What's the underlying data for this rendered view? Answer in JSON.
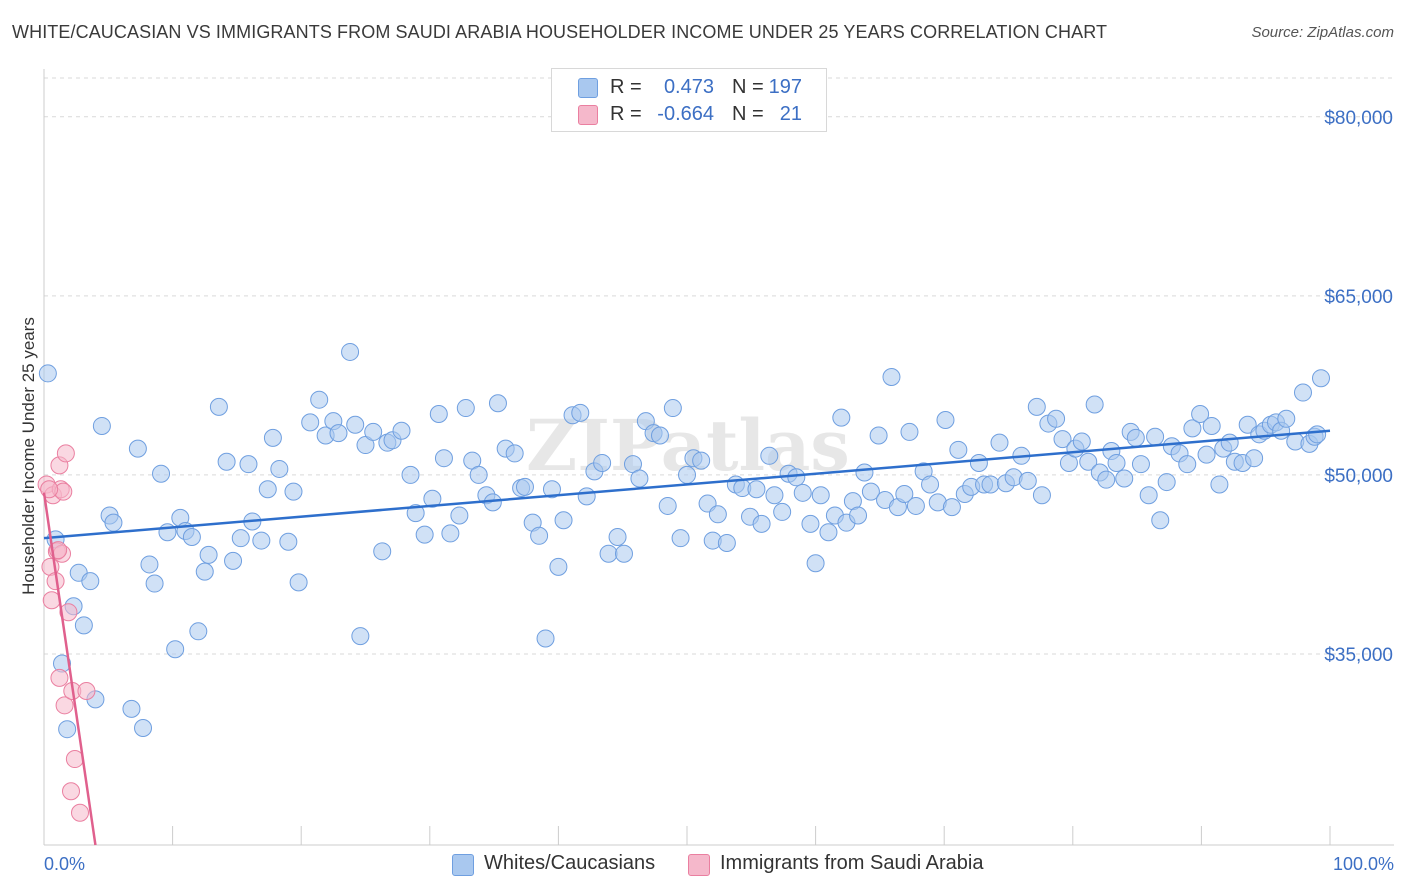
{
  "title": "WHITE/CAUCASIAN VS IMMIGRANTS FROM SAUDI ARABIA HOUSEHOLDER INCOME UNDER 25 YEARS CORRELATION CHART",
  "source": "Source: ZipAtlas.com",
  "watermark": "ZIPatlas",
  "stats": [
    {
      "r_label": "R =",
      "r_value": "0.473",
      "n_label": "N =",
      "n_value": "197",
      "color": "#a9c8ef",
      "border": "#6f9fe0"
    },
    {
      "r_label": "R =",
      "r_value": "-0.664",
      "n_label": "N =",
      "n_value": "21",
      "color": "#f5b8cb",
      "border": "#ea7fa0"
    }
  ],
  "legend": [
    {
      "label": "Whites/Caucasians",
      "color": "#a9c8ef",
      "border": "#6f9fe0"
    },
    {
      "label": "Immigrants from Saudi Arabia",
      "color": "#f5b8cb",
      "border": "#ea7fa0"
    }
  ],
  "chart_data": {
    "type": "scatter",
    "title": "WHITE/CAUCASIAN VS IMMIGRANTS FROM SAUDI ARABIA HOUSEHOLDER INCOME UNDER 25 YEARS CORRELATION CHART",
    "xlabel": "",
    "ylabel": "Householder Income Under 25 years",
    "xlim": [
      0,
      100
    ],
    "ylim": [
      19000,
      84000
    ],
    "x_tick_labels": [
      "0.0%",
      "100.0%"
    ],
    "y_ticks": [
      35000,
      50000,
      65000,
      80000
    ],
    "y_tick_labels": [
      "$35,000",
      "$50,000",
      "$65,000",
      "$80,000"
    ],
    "grid": true,
    "legend_position": "bottom",
    "series": [
      {
        "name": "Whites/Caucasians",
        "color": "#a9c8ef",
        "edge_color": "#6f9fe0",
        "trend": {
          "x": [
            0,
            100
          ],
          "y": [
            44700,
            53700
          ],
          "color": "#2e6fcc"
        },
        "points": [
          [
            0.3,
            58500
          ],
          [
            0.9,
            44600
          ],
          [
            1.4,
            34200
          ],
          [
            1.8,
            28700
          ],
          [
            2.3,
            39000
          ],
          [
            2.7,
            41800
          ],
          [
            3.1,
            37400
          ],
          [
            3.6,
            41100
          ],
          [
            4.0,
            31200
          ],
          [
            4.5,
            54100
          ],
          [
            5.1,
            46600
          ],
          [
            5.4,
            46000
          ],
          [
            6.8,
            30400
          ],
          [
            7.3,
            52200
          ],
          [
            7.7,
            28800
          ],
          [
            8.2,
            42500
          ],
          [
            8.6,
            40900
          ],
          [
            9.1,
            50100
          ],
          [
            9.6,
            45200
          ],
          [
            10.2,
            35400
          ],
          [
            10.6,
            46400
          ],
          [
            11.0,
            45300
          ],
          [
            11.5,
            44800
          ],
          [
            12.0,
            36900
          ],
          [
            12.5,
            41900
          ],
          [
            12.8,
            43300
          ],
          [
            13.6,
            55700
          ],
          [
            14.2,
            51100
          ],
          [
            14.7,
            42800
          ],
          [
            15.3,
            44700
          ],
          [
            15.9,
            50900
          ],
          [
            16.2,
            46100
          ],
          [
            16.9,
            44500
          ],
          [
            17.4,
            48800
          ],
          [
            17.8,
            53100
          ],
          [
            18.3,
            50500
          ],
          [
            19.0,
            44400
          ],
          [
            19.4,
            48600
          ],
          [
            19.8,
            41000
          ],
          [
            20.7,
            54400
          ],
          [
            21.4,
            56300
          ],
          [
            21.9,
            53300
          ],
          [
            22.5,
            54500
          ],
          [
            22.9,
            53500
          ],
          [
            23.8,
            60300
          ],
          [
            24.2,
            54200
          ],
          [
            24.6,
            36500
          ],
          [
            25.0,
            52500
          ],
          [
            25.6,
            53600
          ],
          [
            26.3,
            43600
          ],
          [
            26.7,
            52700
          ],
          [
            27.1,
            52900
          ],
          [
            27.8,
            53700
          ],
          [
            28.5,
            50000
          ],
          [
            28.9,
            46800
          ],
          [
            29.6,
            45000
          ],
          [
            30.2,
            48000
          ],
          [
            30.7,
            55100
          ],
          [
            31.1,
            51400
          ],
          [
            31.6,
            45100
          ],
          [
            32.3,
            46600
          ],
          [
            32.8,
            55600
          ],
          [
            33.3,
            51200
          ],
          [
            33.8,
            50000
          ],
          [
            34.4,
            48300
          ],
          [
            34.9,
            47700
          ],
          [
            35.3,
            56000
          ],
          [
            35.9,
            52200
          ],
          [
            36.6,
            51800
          ],
          [
            37.1,
            48900
          ],
          [
            37.4,
            49000
          ],
          [
            38.0,
            46000
          ],
          [
            38.5,
            44900
          ],
          [
            39.0,
            36300
          ],
          [
            39.5,
            48800
          ],
          [
            40.0,
            42300
          ],
          [
            40.4,
            46200
          ],
          [
            41.1,
            55000
          ],
          [
            41.7,
            55200
          ],
          [
            42.2,
            48200
          ],
          [
            42.8,
            50300
          ],
          [
            43.4,
            51000
          ],
          [
            43.9,
            43400
          ],
          [
            44.6,
            44800
          ],
          [
            45.1,
            43400
          ],
          [
            45.8,
            50900
          ],
          [
            46.3,
            49700
          ],
          [
            46.8,
            54500
          ],
          [
            47.4,
            53500
          ],
          [
            47.9,
            53300
          ],
          [
            48.5,
            47400
          ],
          [
            48.9,
            55600
          ],
          [
            49.5,
            44700
          ],
          [
            50.0,
            50000
          ],
          [
            50.5,
            51400
          ],
          [
            51.1,
            51200
          ],
          [
            51.6,
            47600
          ],
          [
            52.0,
            44500
          ],
          [
            52.4,
            46700
          ],
          [
            53.1,
            44300
          ],
          [
            53.8,
            49200
          ],
          [
            54.3,
            48900
          ],
          [
            54.9,
            46500
          ],
          [
            55.4,
            48800
          ],
          [
            55.8,
            45900
          ],
          [
            56.4,
            51600
          ],
          [
            56.8,
            48300
          ],
          [
            57.4,
            46900
          ],
          [
            57.9,
            50100
          ],
          [
            58.5,
            49800
          ],
          [
            59.0,
            48500
          ],
          [
            59.6,
            45900
          ],
          [
            60.0,
            42600
          ],
          [
            60.4,
            48300
          ],
          [
            61.0,
            45200
          ],
          [
            61.5,
            46600
          ],
          [
            62.0,
            54800
          ],
          [
            62.4,
            46000
          ],
          [
            62.9,
            47800
          ],
          [
            63.3,
            46600
          ],
          [
            63.8,
            50200
          ],
          [
            64.3,
            48600
          ],
          [
            64.9,
            53300
          ],
          [
            65.4,
            47900
          ],
          [
            65.9,
            58200
          ],
          [
            66.4,
            47300
          ],
          [
            66.9,
            48400
          ],
          [
            67.3,
            53600
          ],
          [
            67.8,
            47400
          ],
          [
            68.4,
            50300
          ],
          [
            68.9,
            49200
          ],
          [
            69.5,
            47700
          ],
          [
            70.1,
            54600
          ],
          [
            70.6,
            47300
          ],
          [
            71.1,
            52100
          ],
          [
            71.6,
            48400
          ],
          [
            72.1,
            49000
          ],
          [
            72.7,
            51000
          ],
          [
            73.1,
            49200
          ],
          [
            73.6,
            49200
          ],
          [
            74.3,
            52700
          ],
          [
            74.8,
            49300
          ],
          [
            75.4,
            49800
          ],
          [
            76.0,
            51600
          ],
          [
            76.5,
            49500
          ],
          [
            77.2,
            55700
          ],
          [
            77.6,
            48300
          ],
          [
            78.1,
            54300
          ],
          [
            78.7,
            54700
          ],
          [
            79.2,
            53000
          ],
          [
            79.7,
            51000
          ],
          [
            80.2,
            52200
          ],
          [
            80.7,
            52800
          ],
          [
            81.2,
            51100
          ],
          [
            81.7,
            55900
          ],
          [
            82.1,
            50200
          ],
          [
            82.6,
            49600
          ],
          [
            83.0,
            52000
          ],
          [
            83.4,
            51000
          ],
          [
            84.0,
            49700
          ],
          [
            84.5,
            53600
          ],
          [
            84.9,
            53100
          ],
          [
            85.3,
            50900
          ],
          [
            85.9,
            48300
          ],
          [
            86.4,
            53200
          ],
          [
            86.8,
            46200
          ],
          [
            87.3,
            49400
          ],
          [
            87.7,
            52400
          ],
          [
            88.3,
            51800
          ],
          [
            88.9,
            50900
          ],
          [
            89.3,
            53900
          ],
          [
            89.9,
            55100
          ],
          [
            90.4,
            51700
          ],
          [
            90.8,
            54100
          ],
          [
            91.4,
            49200
          ],
          [
            91.7,
            52200
          ],
          [
            92.2,
            52700
          ],
          [
            92.6,
            51100
          ],
          [
            93.2,
            51000
          ],
          [
            93.6,
            54200
          ],
          [
            94.1,
            51400
          ],
          [
            94.5,
            53400
          ],
          [
            94.9,
            53700
          ],
          [
            95.4,
            54200
          ],
          [
            95.8,
            54400
          ],
          [
            96.2,
            53700
          ],
          [
            96.6,
            54700
          ],
          [
            97.3,
            52800
          ],
          [
            97.9,
            56900
          ],
          [
            98.4,
            52600
          ],
          [
            98.8,
            53200
          ],
          [
            99.0,
            53400
          ],
          [
            99.3,
            58100
          ]
        ]
      },
      {
        "name": "Immigrants from Saudi Arabia",
        "color": "#f5b8cb",
        "edge_color": "#ea7fa0",
        "trend": {
          "x": [
            0,
            4.0
          ],
          "y": [
            48500,
            19000
          ],
          "color": "#e0608d"
        },
        "points": [
          [
            0.2,
            49200
          ],
          [
            0.5,
            42300
          ],
          [
            0.7,
            48300
          ],
          [
            0.9,
            41100
          ],
          [
            0.6,
            39500
          ],
          [
            1.0,
            43600
          ],
          [
            1.3,
            48800
          ],
          [
            1.2,
            50800
          ],
          [
            1.4,
            43400
          ],
          [
            1.7,
            51800
          ],
          [
            1.9,
            38500
          ],
          [
            1.1,
            43700
          ],
          [
            1.6,
            30700
          ],
          [
            2.2,
            31900
          ],
          [
            2.4,
            26200
          ],
          [
            2.1,
            23500
          ],
          [
            2.8,
            21700
          ],
          [
            3.3,
            31900
          ],
          [
            1.2,
            33000
          ],
          [
            1.5,
            48600
          ],
          [
            0.4,
            48800
          ]
        ]
      }
    ]
  }
}
